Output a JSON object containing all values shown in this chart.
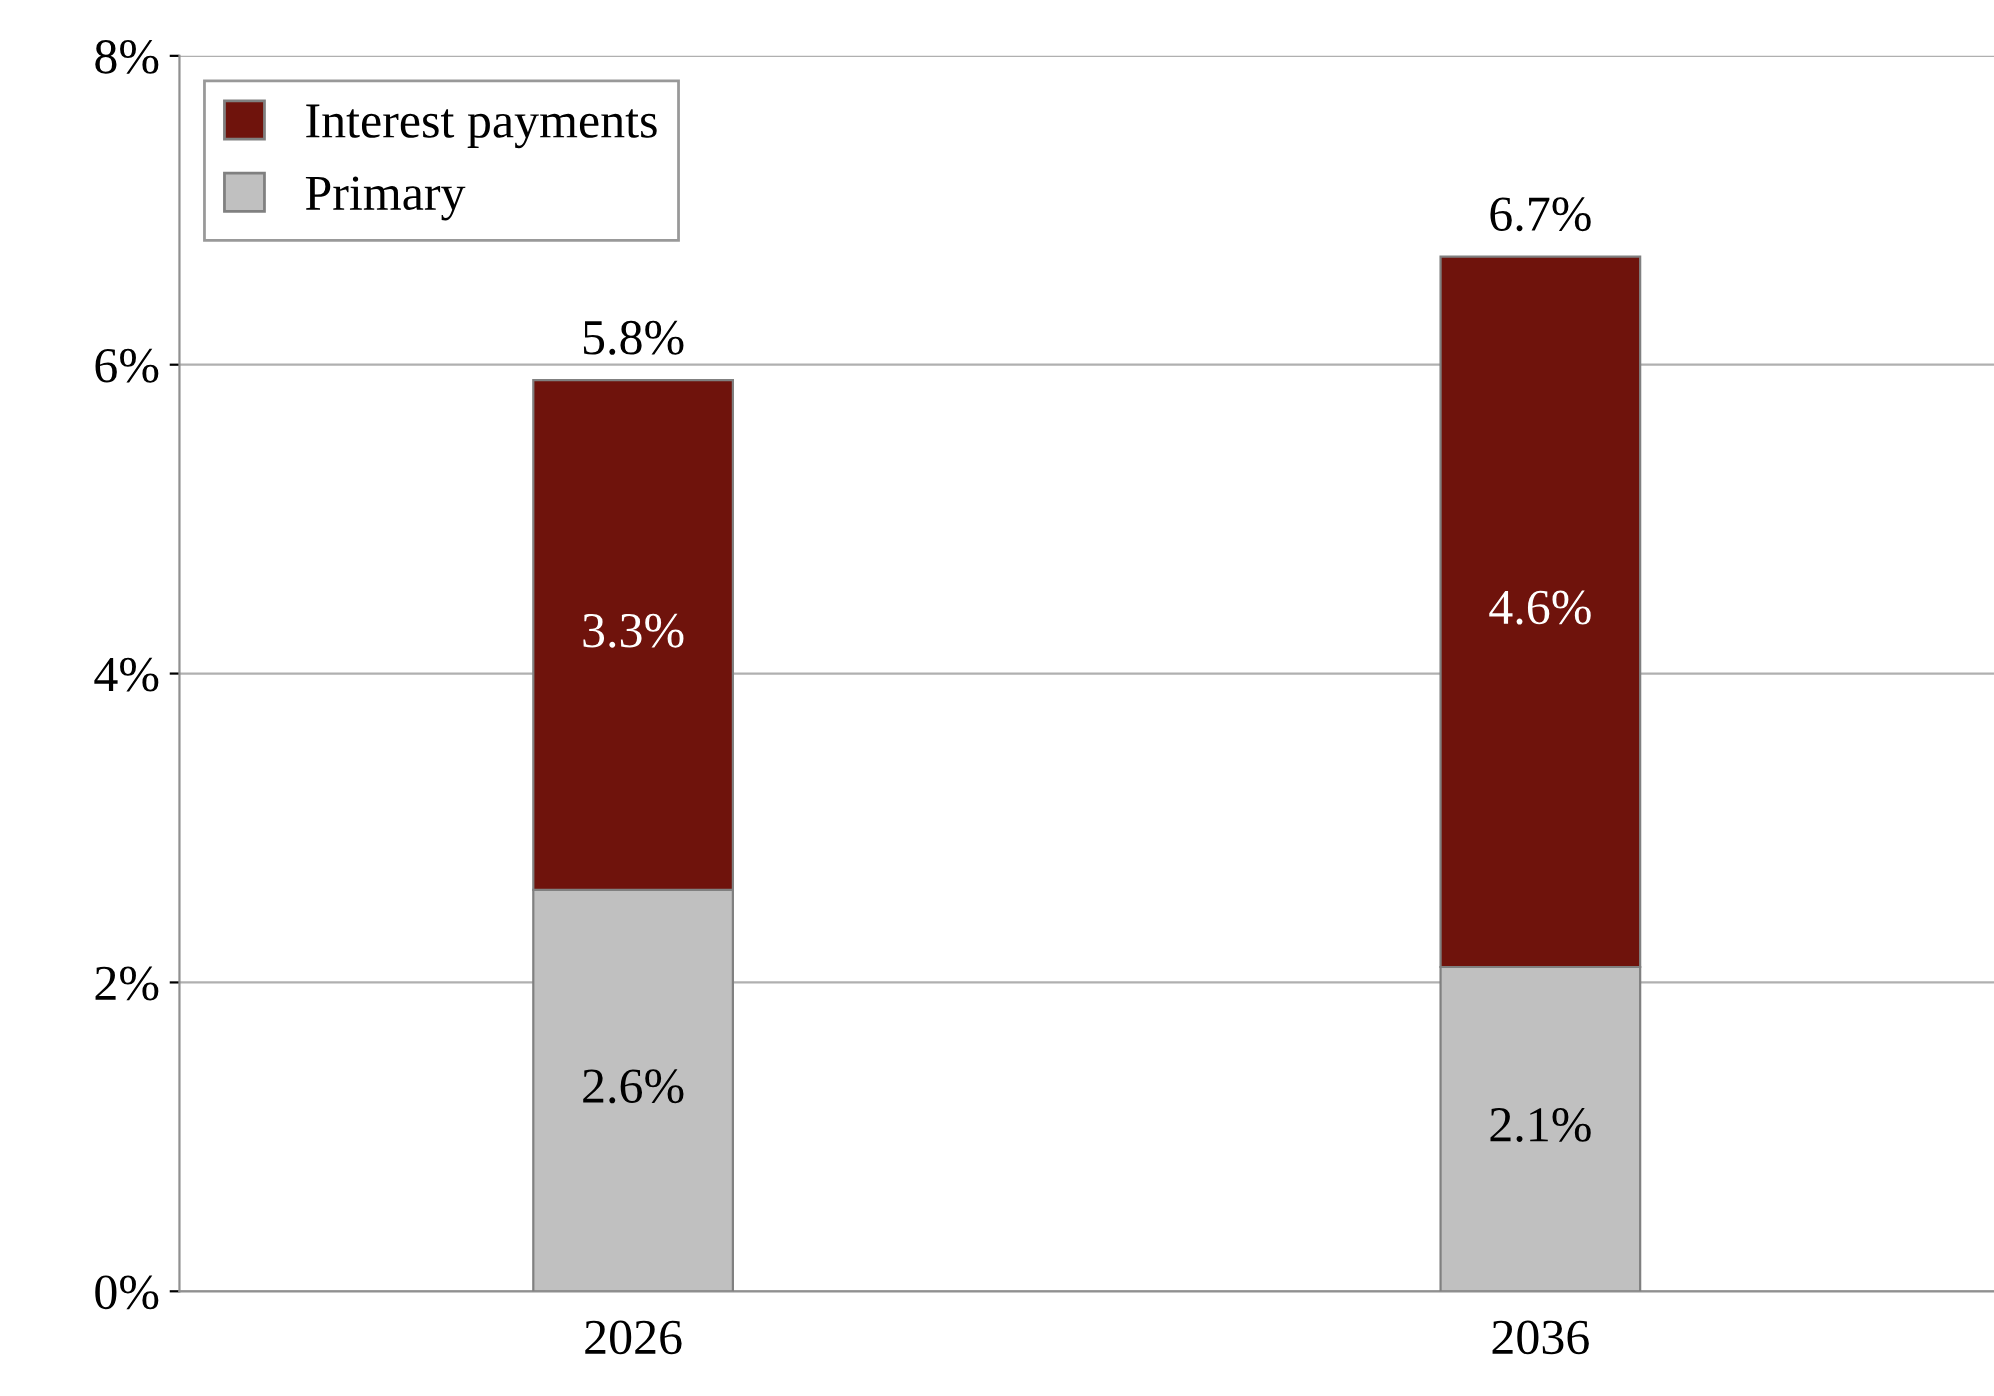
{
  "chart_data": {
    "type": "bar",
    "stacked": true,
    "categories": [
      "2026",
      "2036"
    ],
    "series": [
      {
        "name": "Primary",
        "color": "#c0c0c0",
        "values": [
          2.6,
          2.1
        ],
        "value_labels": [
          "2.6%",
          "2.1%"
        ]
      },
      {
        "name": "Interest payments",
        "color": "#6f130c",
        "values": [
          3.3,
          4.6
        ],
        "value_labels": [
          "3.3%",
          "4.6%"
        ]
      }
    ],
    "totals": [
      "5.8%",
      "6.7%"
    ],
    "ylim": [
      0,
      8
    ],
    "yticks": [
      {
        "value": 0,
        "label": "0%"
      },
      {
        "value": 2,
        "label": "2%"
      },
      {
        "value": 4,
        "label": "4%"
      },
      {
        "value": 6,
        "label": "6%"
      },
      {
        "value": 8,
        "label": "8%"
      }
    ],
    "grid": "y",
    "legend": "top left"
  }
}
